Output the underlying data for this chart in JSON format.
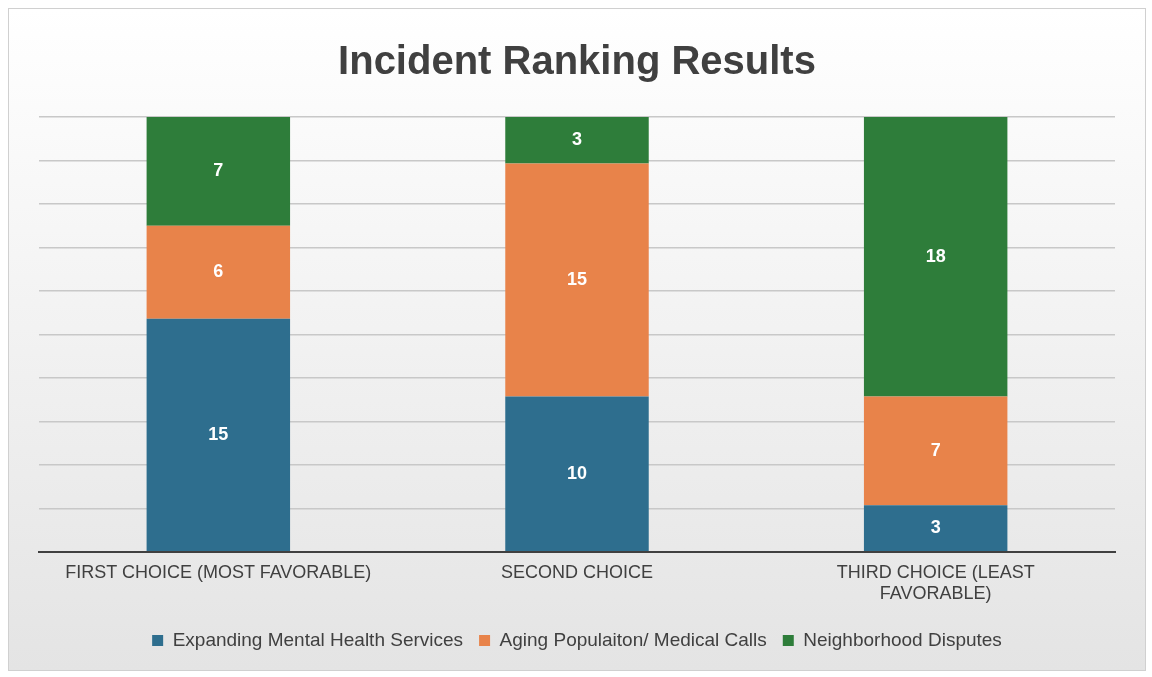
{
  "chart_data": {
    "type": "bar",
    "title": "Incident Ranking Results",
    "categories": [
      "FIRST CHOICE (MOST FAVORABLE)",
      "SECOND CHOICE",
      "THIRD CHOICE (LEAST FAVORABLE)"
    ],
    "series": [
      {
        "name": "Expanding Mental Health Services",
        "color": "#2e6e8e",
        "values": [
          15,
          10,
          3
        ]
      },
      {
        "name": "Aging Populaiton/ Medical Calls",
        "color": "#e8834a",
        "values": [
          6,
          15,
          7
        ]
      },
      {
        "name": "Neighborhood Disputes",
        "color": "#2e7d3a",
        "values": [
          7,
          3,
          18
        ]
      }
    ],
    "stacked": true,
    "data_labels": true,
    "grid": "y",
    "legend": "bottom",
    "tick_labels": "x",
    "ylim": [
      0,
      28
    ],
    "yticks": [
      {
        "value": 0,
        "label": null
      },
      {
        "value": 2.8,
        "label": null
      },
      {
        "value": 5.6,
        "label": null
      },
      {
        "value": 8.4,
        "label": null
      },
      {
        "value": 11.2,
        "label": null
      },
      {
        "value": 14,
        "label": null
      },
      {
        "value": 16.8,
        "label": null
      },
      {
        "value": 19.6,
        "label": null
      },
      {
        "value": 22.4,
        "label": null
      },
      {
        "value": 25.2,
        "label": null
      },
      {
        "value": 28,
        "label": null
      }
    ]
  }
}
